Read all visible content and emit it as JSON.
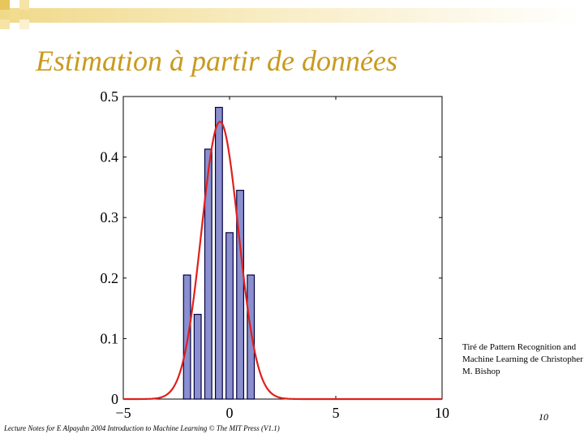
{
  "slide": {
    "title": "Estimation à partir de données",
    "credit": "Tiré de Pattern Recognition and Machine Learning de Christopher M. Bishop",
    "page_number": "10",
    "footer": "Lecture Notes for E Alpaydın 2004 Introduction to Machine Learning © The MIT Press (V1.1)"
  },
  "chart_data": {
    "type": "bar",
    "title": "",
    "xlabel": "",
    "ylabel": "",
    "xlim": [
      -5,
      10
    ],
    "ylim": [
      0,
      0.5
    ],
    "xticks": [
      -5,
      0,
      5,
      10
    ],
    "yticks": [
      0,
      0.1,
      0.2,
      0.3,
      0.4,
      0.5
    ],
    "xtick_labels": [
      "−5",
      "0",
      "5",
      "10"
    ],
    "ytick_labels": [
      "0",
      "0.1",
      "0.2",
      "0.3",
      "0.4",
      "0.5"
    ],
    "bar_width": 0.33,
    "bars": [
      {
        "x": -2.0,
        "value": 0.205
      },
      {
        "x": -1.5,
        "value": 0.14
      },
      {
        "x": -1.0,
        "value": 0.413
      },
      {
        "x": -0.5,
        "value": 0.482
      },
      {
        "x": 0.0,
        "value": 0.275
      },
      {
        "x": 0.5,
        "value": 0.345
      },
      {
        "x": 1.0,
        "value": 0.205
      }
    ],
    "curve": {
      "type": "gaussian",
      "mean": -0.45,
      "std": 0.87
    },
    "colors": {
      "bar_fill": "#8c8fcf",
      "bar_edge": "#000040",
      "curve": "#e0201b"
    },
    "grid": false
  }
}
